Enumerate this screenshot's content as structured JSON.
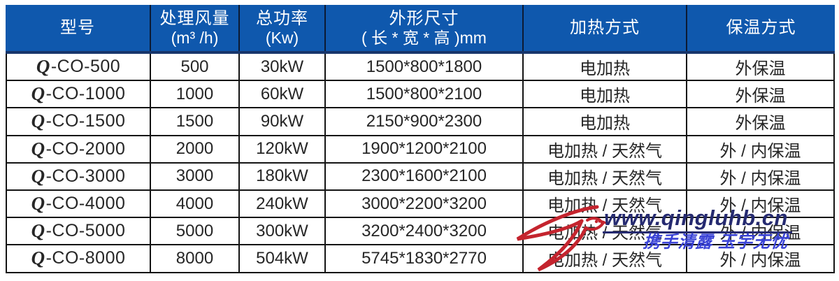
{
  "watermark": {
    "url": "www.qingluhb.cn",
    "slogan": "携手清露 玉宇无忧",
    "logo_icon": "swallow-logo",
    "url_color": "#252a70",
    "slogan_color": "#3a43d6",
    "logo_color": "#c4242e"
  },
  "table": {
    "header_bg": "#0f58ad",
    "header_divider_color": "#17356b",
    "grid_color": "#141414",
    "header": {
      "cells": [
        {
          "line1": "型号",
          "line2": ""
        },
        {
          "line1": "处理风量",
          "line2": "(m³ /h)"
        },
        {
          "line1": "总功率",
          "line2": "(Kw)"
        },
        {
          "line1": "外形尺寸",
          "line2": "( 长 * 宽 * 高 )mm"
        },
        {
          "line1": "加热方式",
          "line2": ""
        },
        {
          "line1": "保温方式",
          "line2": ""
        }
      ]
    }
  },
  "chart_data": {
    "type": "table",
    "columns": [
      "型号",
      "处理风量 (m³/h)",
      "总功率 (Kw)",
      "外形尺寸 (长*宽*高)mm",
      "加热方式",
      "保温方式"
    ],
    "rows": [
      {
        "model": "Q-CO-500",
        "airflow": "500",
        "power": "30kW",
        "dimensions": "1500*800*1800",
        "heating": "电加热",
        "insulation": "外保温"
      },
      {
        "model": "Q-CO-1000",
        "airflow": "1000",
        "power": "60kW",
        "dimensions": "1500*800*2100",
        "heating": "电加热",
        "insulation": "外保温"
      },
      {
        "model": "Q-CO-1500",
        "airflow": "1500",
        "power": "90kW",
        "dimensions": "2150*900*2300",
        "heating": "电加热",
        "insulation": "外保温"
      },
      {
        "model": "Q-CO-2000",
        "airflow": "2000",
        "power": "120kW",
        "dimensions": "1900*1200*2100",
        "heating": "电加热 / 天然气",
        "insulation": "外 / 内保温"
      },
      {
        "model": "Q-CO-3000",
        "airflow": "3000",
        "power": "180kW",
        "dimensions": "2300*1600*2100",
        "heating": "电加热 / 天然气",
        "insulation": "外 / 内保温"
      },
      {
        "model": "Q-CO-4000",
        "airflow": "4000",
        "power": "240kW",
        "dimensions": "3000*2200*3200",
        "heating": "电加热 / 天然气",
        "insulation": "外 / 内保温"
      },
      {
        "model": "Q-CO-5000",
        "airflow": "5000",
        "power": "300kW",
        "dimensions": "3200*2400*3200",
        "heating": "电加热 / 天然气",
        "insulation": "外 / 内保温"
      },
      {
        "model": "Q-CO-8000",
        "airflow": "8000",
        "power": "504kW",
        "dimensions": "5745*1830*2770",
        "heating": "电加热 / 天然气",
        "insulation": "外 / 内保温"
      }
    ]
  }
}
